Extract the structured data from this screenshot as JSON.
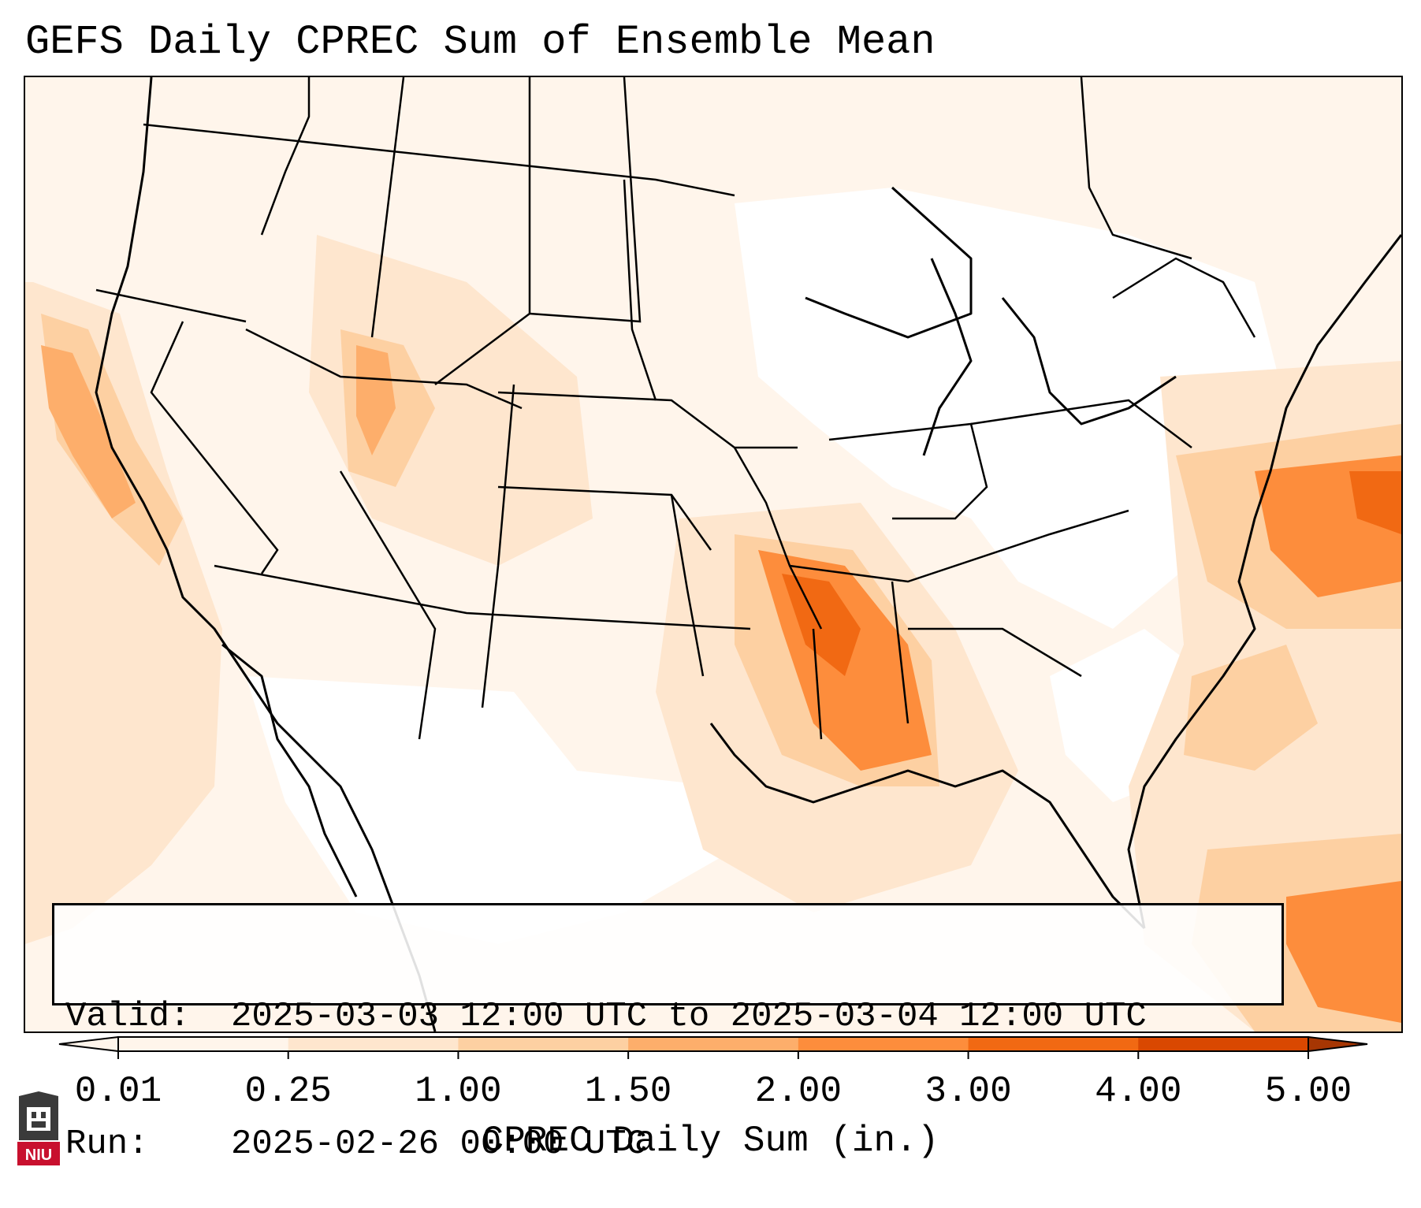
{
  "title": "GEFS Daily CPREC Sum of Ensemble Mean",
  "info": {
    "valid_label": "Valid:",
    "valid_value": "2025-03-03 12:00 UTC to 2025-03-04 12:00 UTC",
    "run_label": "Run:",
    "run_value": "2025-02-26 00:00 UTC"
  },
  "colorbar": {
    "label": "CPREC Daily Sum (in.)",
    "ticks": [
      "0.01",
      "0.25",
      "1.00",
      "1.50",
      "2.00",
      "3.00",
      "4.00",
      "5.00"
    ],
    "colors": [
      "#fff5eb",
      "#fee6ce",
      "#fdd0a2",
      "#fdae6b",
      "#fd8d3c",
      "#f16913",
      "#d94801",
      "#a63603"
    ],
    "extend": "both"
  },
  "logo": {
    "text": "NIU"
  },
  "precip_levels": [
    "#fff5eb",
    "#fee6ce",
    "#fdd0a2",
    "#fdae6b",
    "#fd8d3c",
    "#f16913",
    "#d94801"
  ]
}
